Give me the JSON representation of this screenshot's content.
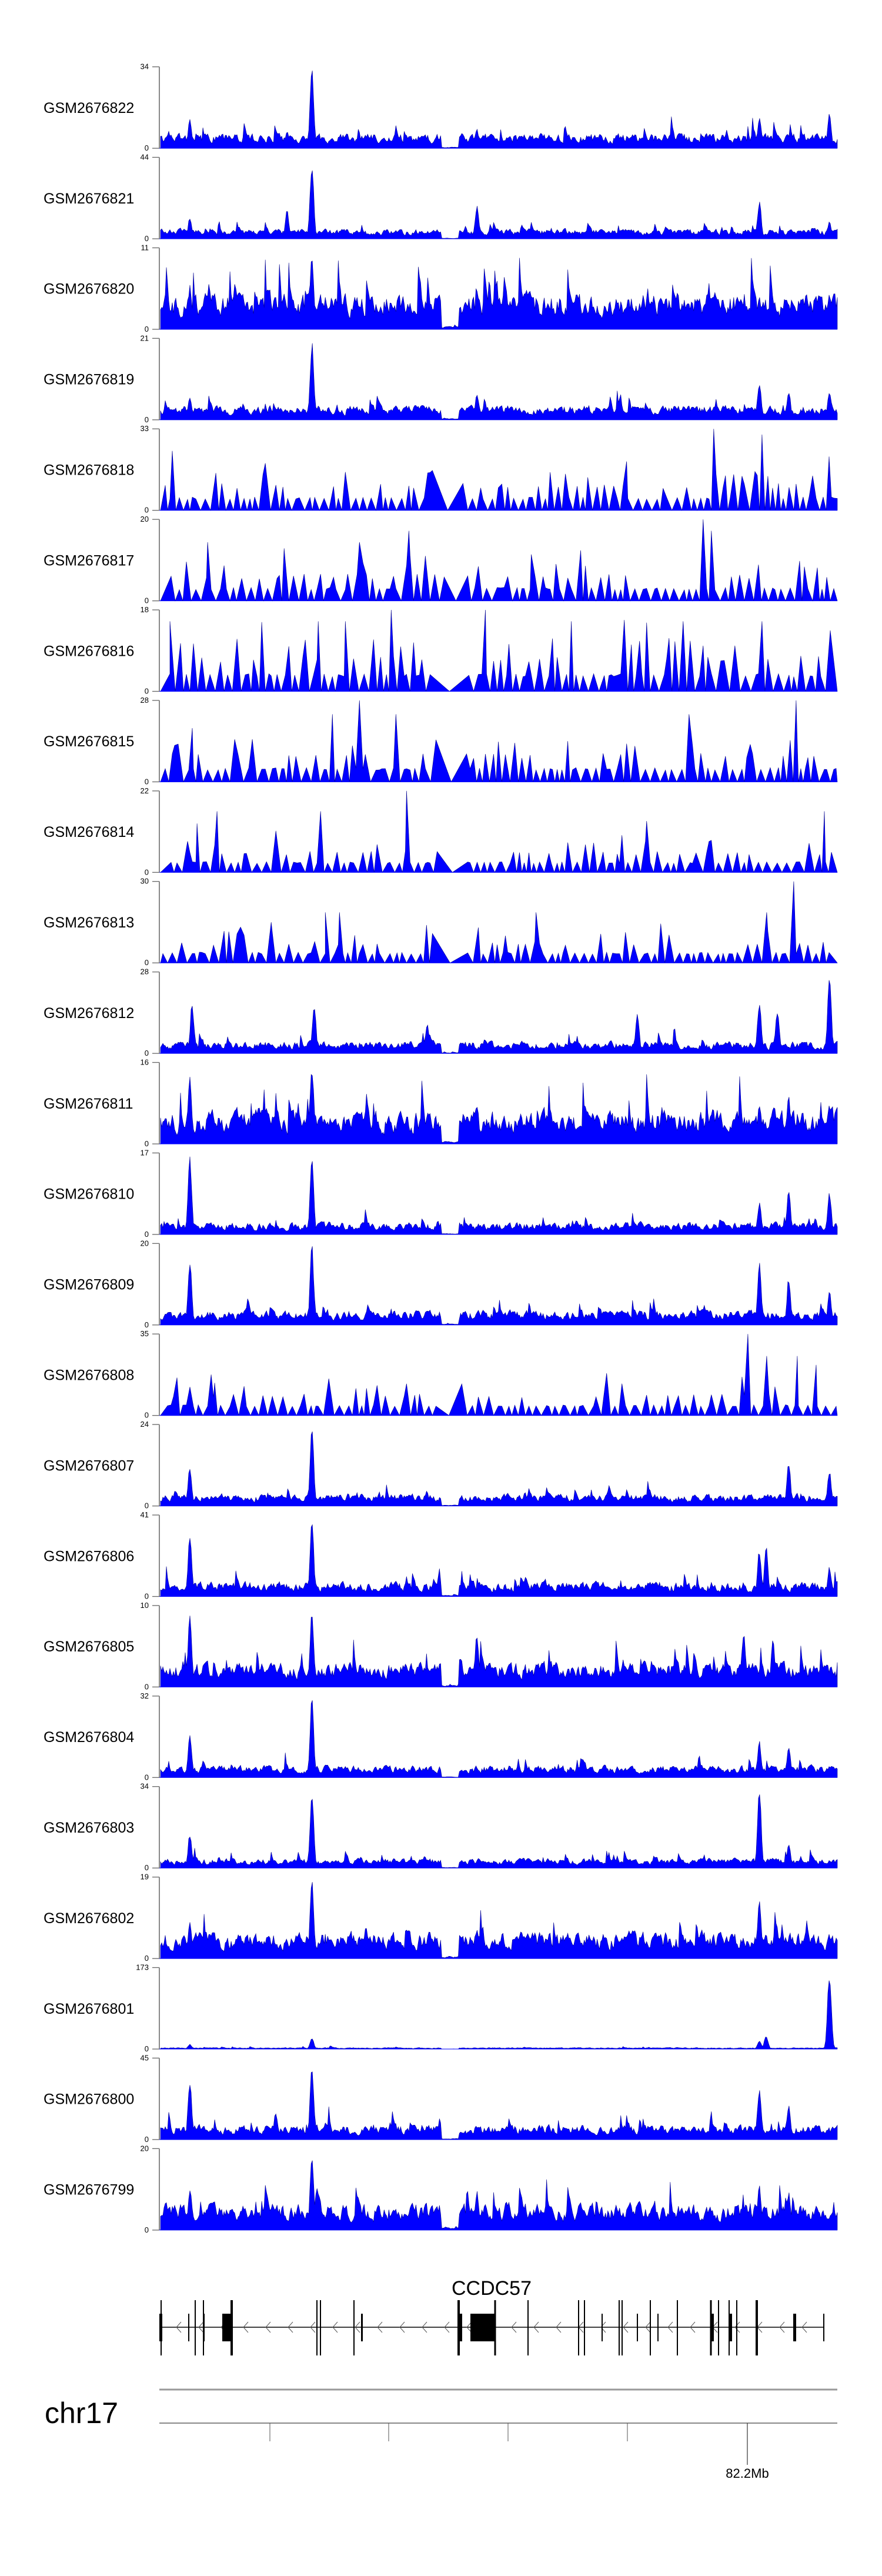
{
  "chart_data": {
    "type": "area",
    "title": "",
    "xlabel": "chr17",
    "ylabel": "",
    "x_axis": {
      "chromosome": "chr17",
      "tick_label": "82.2Mb",
      "unlabeled_ticks": 4
    },
    "bins": 300,
    "grid": false,
    "fill_color": "#0000ff",
    "stroke_color": "#00008b",
    "gap_bins": [
      124,
      132
    ],
    "series": [
      {
        "name": "GSM2676822",
        "ymin": 0,
        "ymax": 34,
        "style": "dense",
        "baseline": 0.12,
        "peaks": [
          [
            67,
            1.0
          ],
          [
            13,
            0.36
          ],
          [
            265,
            0.4
          ],
          [
            296,
            0.43
          ],
          [
            56,
            0.22
          ],
          [
            140,
            0.24
          ]
        ]
      },
      {
        "name": "GSM2676821",
        "ymin": 0,
        "ymax": 44,
        "style": "dense",
        "baseline": 0.08,
        "peaks": [
          [
            67,
            1.0
          ],
          [
            56,
            0.36
          ],
          [
            140,
            0.43
          ],
          [
            265,
            0.48
          ],
          [
            13,
            0.27
          ],
          [
            296,
            0.22
          ],
          [
            160,
            0.18
          ]
        ]
      },
      {
        "name": "GSM2676820",
        "ymin": 0,
        "ymax": 11,
        "style": "dense",
        "baseline": 0.3,
        "peaks": [
          [
            67,
            1.0
          ],
          [
            13,
            0.56
          ],
          [
            140,
            0.54
          ],
          [
            296,
            0.48
          ],
          [
            265,
            0.4
          ]
        ]
      },
      {
        "name": "GSM2676819",
        "ymin": 0,
        "ymax": 21,
        "style": "dense",
        "baseline": 0.12,
        "peaks": [
          [
            67,
            1.0
          ],
          [
            140,
            0.34
          ],
          [
            265,
            0.5
          ],
          [
            278,
            0.38
          ],
          [
            296,
            0.38
          ],
          [
            13,
            0.3
          ]
        ]
      },
      {
        "name": "GSM2676818",
        "ymin": 0,
        "ymax": 33,
        "style": "sparse",
        "baseline": 0.15,
        "peaks": [
          [
            245,
            1.0
          ],
          [
            266,
            0.93
          ],
          [
            296,
            0.66
          ],
          [
            5,
            0.73
          ],
          [
            206,
            0.6
          ],
          [
            118,
            0.46
          ],
          [
            134,
            0.33
          ]
        ]
      },
      {
        "name": "GSM2676817",
        "ymin": 0,
        "ymax": 20,
        "style": "sparse",
        "baseline": 0.15,
        "peaks": [
          [
            240,
            1.0
          ],
          [
            244,
            0.86
          ],
          [
            110,
            0.86
          ],
          [
            21,
            0.72
          ],
          [
            88,
            0.72
          ],
          [
            164,
            0.57
          ]
        ]
      },
      {
        "name": "GSM2676816",
        "ymin": 0,
        "ymax": 18,
        "style": "sparse",
        "baseline": 0.2,
        "peaks": [
          [
            102,
            1.0
          ],
          [
            144,
            1.0
          ],
          [
            4,
            0.86
          ],
          [
            70,
            0.86
          ],
          [
            82,
            0.86
          ],
          [
            182,
            0.86
          ],
          [
            266,
            0.86
          ]
        ]
      },
      {
        "name": "GSM2676815",
        "ymin": 0,
        "ymax": 28,
        "style": "sparse",
        "baseline": 0.16,
        "peaks": [
          [
            88,
            1.0
          ],
          [
            281,
            1.0
          ],
          [
            104,
            0.83
          ],
          [
            76,
            0.83
          ],
          [
            234,
            0.83
          ],
          [
            14,
            0.66
          ],
          [
            180,
            0.5
          ]
        ]
      },
      {
        "name": "GSM2676814",
        "ymin": 0,
        "ymax": 22,
        "style": "sparse",
        "baseline": 0.12,
        "peaks": [
          [
            109,
            1.0
          ],
          [
            71,
            0.75
          ],
          [
            25,
            0.75
          ],
          [
            294,
            0.75
          ],
          [
            215,
            0.63
          ],
          [
            16,
            0.6
          ]
        ]
      },
      {
        "name": "GSM2676813",
        "ymin": 0,
        "ymax": 30,
        "style": "sparse",
        "baseline": 0.12,
        "peaks": [
          [
            280,
            1.0
          ],
          [
            73,
            0.62
          ],
          [
            79,
            0.62
          ],
          [
            166,
            0.62
          ],
          [
            268,
            0.62
          ],
          [
            49,
            0.5
          ]
        ]
      },
      {
        "name": "GSM2676812",
        "ymin": 0,
        "ymax": 28,
        "style": "dense",
        "baseline": 0.1,
        "peaks": [
          [
            296,
            1.0
          ],
          [
            265,
            0.68
          ],
          [
            68,
            0.64
          ],
          [
            14,
            0.64
          ],
          [
            211,
            0.52
          ],
          [
            273,
            0.55
          ],
          [
            118,
            0.37
          ]
        ]
      },
      {
        "name": "GSM2676811",
        "ymin": 0,
        "ymax": 16,
        "style": "dense",
        "baseline": 0.28,
        "peaks": [
          [
            67,
            1.0
          ],
          [
            13,
            0.9
          ],
          [
            278,
            0.6
          ],
          [
            296,
            0.52
          ],
          [
            265,
            0.52
          ],
          [
            140,
            0.53
          ]
        ]
      },
      {
        "name": "GSM2676810",
        "ymin": 0,
        "ymax": 17,
        "style": "dense",
        "baseline": 0.1,
        "peaks": [
          [
            13,
            1.0
          ],
          [
            67,
            0.98
          ],
          [
            265,
            0.4
          ],
          [
            278,
            0.55
          ],
          [
            296,
            0.55
          ]
        ]
      },
      {
        "name": "GSM2676809",
        "ymin": 0,
        "ymax": 20,
        "style": "dense",
        "baseline": 0.12,
        "peaks": [
          [
            13,
            0.8
          ],
          [
            67,
            1.0
          ],
          [
            265,
            0.78
          ],
          [
            278,
            0.6
          ],
          [
            296,
            0.42
          ]
        ]
      },
      {
        "name": "GSM2676808",
        "ymin": 0,
        "ymax": 35,
        "style": "sparse",
        "baseline": 0.12,
        "peaks": [
          [
            260,
            1.0
          ],
          [
            268,
            0.73
          ],
          [
            282,
            0.73
          ],
          [
            290,
            0.62
          ],
          [
            13,
            0.35
          ],
          [
            24,
            0.4
          ]
        ]
      },
      {
        "name": "GSM2676807",
        "ymin": 0,
        "ymax": 24,
        "style": "dense",
        "baseline": 0.1,
        "peaks": [
          [
            67,
            1.0
          ],
          [
            13,
            0.5
          ],
          [
            278,
            0.55
          ],
          [
            296,
            0.45
          ]
        ]
      },
      {
        "name": "GSM2676806",
        "ymin": 0,
        "ymax": 41,
        "style": "dense",
        "baseline": 0.12,
        "peaks": [
          [
            13,
            0.8
          ],
          [
            67,
            1.0
          ],
          [
            265,
            0.6
          ],
          [
            268,
            0.62
          ],
          [
            296,
            0.38
          ]
        ]
      },
      {
        "name": "GSM2676805",
        "ymin": 0,
        "ymax": 10,
        "style": "dense",
        "baseline": 0.2,
        "peaks": [
          [
            13,
            0.9
          ],
          [
            67,
            1.0
          ],
          [
            140,
            0.7
          ],
          [
            258,
            0.7
          ],
          [
            271,
            0.6
          ]
        ]
      },
      {
        "name": "GSM2676804",
        "ymin": 0,
        "ymax": 32,
        "style": "dense",
        "baseline": 0.1,
        "peaks": [
          [
            67,
            1.0
          ],
          [
            13,
            0.57
          ],
          [
            265,
            0.45
          ],
          [
            278,
            0.38
          ]
        ]
      },
      {
        "name": "GSM2676803",
        "ymin": 0,
        "ymax": 34,
        "style": "dense",
        "baseline": 0.08,
        "peaks": [
          [
            67,
            1.0
          ],
          [
            265,
            0.99
          ],
          [
            13,
            0.44
          ],
          [
            278,
            0.32
          ]
        ]
      },
      {
        "name": "GSM2676802",
        "ymin": 0,
        "ymax": 19,
        "style": "dense",
        "baseline": 0.22,
        "peaks": [
          [
            67,
            1.0
          ],
          [
            265,
            0.78
          ],
          [
            13,
            0.46
          ],
          [
            140,
            0.4
          ],
          [
            286,
            0.48
          ]
        ]
      },
      {
        "name": "GSM2676801",
        "ymin": 0,
        "ymax": 173,
        "style": "dense",
        "baseline": 0.012,
        "peaks": [
          [
            296,
            1.0
          ],
          [
            67,
            0.14
          ],
          [
            13,
            0.06
          ],
          [
            268,
            0.17
          ],
          [
            265,
            0.11
          ]
        ]
      },
      {
        "name": "GSM2676800",
        "ymin": 0,
        "ymax": 45,
        "style": "dense",
        "baseline": 0.12,
        "peaks": [
          [
            67,
            1.0
          ],
          [
            13,
            0.78
          ],
          [
            265,
            0.67
          ],
          [
            278,
            0.44
          ],
          [
            51,
            0.36
          ]
        ]
      },
      {
        "name": "GSM2676799",
        "ymin": 0,
        "ymax": 20,
        "style": "dense",
        "baseline": 0.22,
        "peaks": [
          [
            67,
            1.0
          ],
          [
            13,
            0.53
          ],
          [
            140,
            0.5
          ],
          [
            265,
            0.57
          ],
          [
            278,
            0.47
          ]
        ]
      }
    ],
    "gene_track": {
      "gene": "CCDC57",
      "strand": "-"
    }
  }
}
